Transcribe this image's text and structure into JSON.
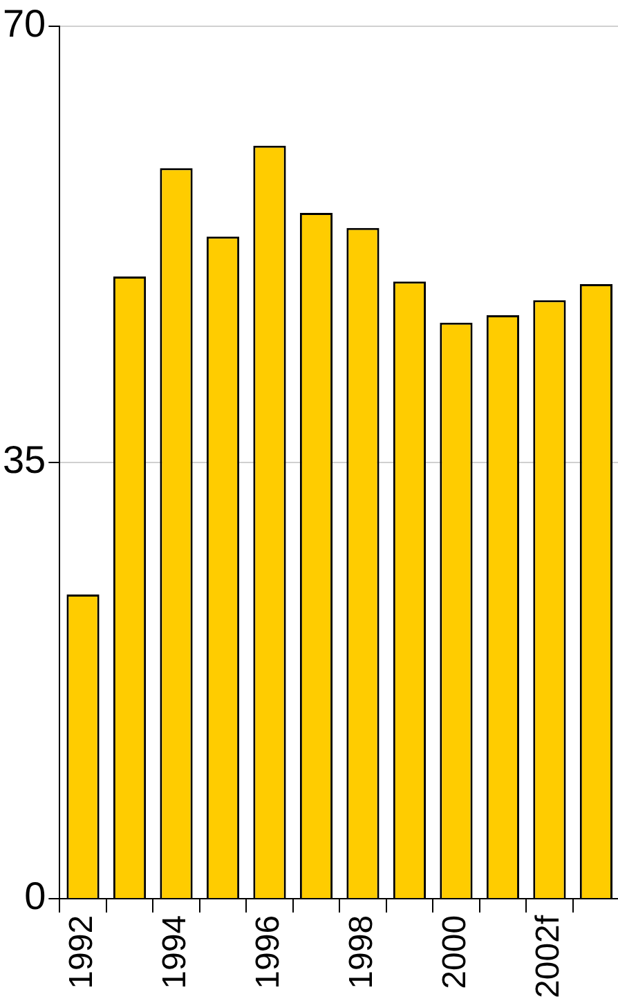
{
  "chart_data": {
    "type": "bar",
    "categories": [
      "1992",
      null,
      "1994",
      null,
      "1996",
      null,
      "1998",
      null,
      "2000",
      null,
      "2002f",
      null
    ],
    "values": [
      24.4,
      49.9,
      58.6,
      53.1,
      60.4,
      55.0,
      53.8,
      49.5,
      46.2,
      46.8,
      48.0,
      49.3
    ],
    "color": "#ffcc00",
    "ylim": [
      0,
      70
    ],
    "yticks": [
      0,
      35,
      70
    ],
    "grid": "y"
  }
}
